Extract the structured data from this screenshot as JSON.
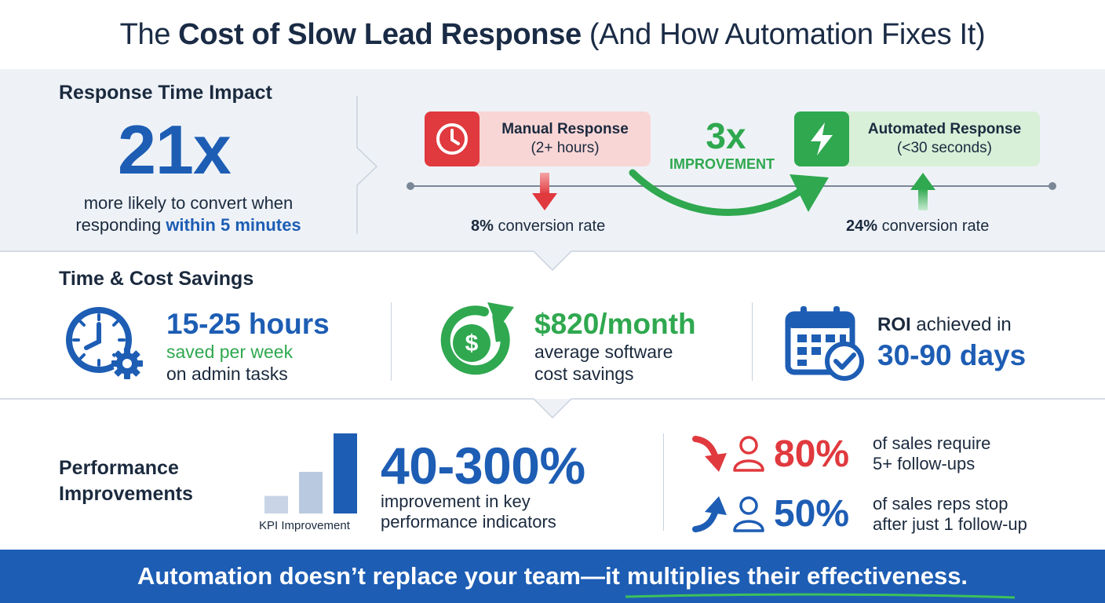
{
  "title": {
    "prefix": "The",
    "bold": "Cost of Slow Lead Response",
    "suffix": "(And How Automation Fixes It)"
  },
  "response_time": {
    "heading": "Response Time Impact",
    "big_stat": "21x",
    "desc_line1": "more likely to convert when",
    "desc_line2_prefix": "responding",
    "desc_line2_highlight": "within 5 minutes",
    "manual": {
      "title": "Manual Response",
      "subtitle": "(2+ hours)",
      "icon": "clock-icon",
      "rate_value": "8%",
      "rate_label": "conversion rate"
    },
    "improvement": {
      "value": "3x",
      "label": "IMPROVEMENT"
    },
    "automated": {
      "title": "Automated Response",
      "subtitle": "(<30 seconds)",
      "icon": "lightning-icon",
      "rate_value": "24%",
      "rate_label": "conversion rate"
    }
  },
  "savings": {
    "heading": "Time & Cost Savings",
    "hours": {
      "icon": "clock-gear-icon",
      "value": "15-25 hours",
      "line1": "saved per week",
      "line2": "on admin tasks"
    },
    "cost": {
      "icon": "dollar-growth-icon",
      "value": "$820/month",
      "line1": "average software",
      "line2": "cost savings"
    },
    "roi": {
      "icon": "calendar-check-icon",
      "label_bold": "ROI",
      "label_rest": "achieved in",
      "value": "30-90 days"
    }
  },
  "performance": {
    "heading_line1": "Performance",
    "heading_line2": "Improvements",
    "kpi_label": "KPI Improvement",
    "kpi_bars": [
      0.22,
      0.52,
      1.0
    ],
    "big_stat": "40-300%",
    "desc_line1": "improvement in key",
    "desc_line2": "performance indicators",
    "stat_80": {
      "value": "80%",
      "line1": "of sales require",
      "line2": "5+ follow-ups"
    },
    "stat_50": {
      "value": "50%",
      "line1": "of sales reps stop",
      "line2": "after just 1 follow-up"
    }
  },
  "footer": {
    "text": "Automation doesn’t replace your team—it",
    "emphasis": "multiplies their effectiveness."
  },
  "colors": {
    "blue": "#1d5db4",
    "green": "#2fa84f",
    "red": "#e0393e",
    "navy": "#1b2a3e",
    "light_bg": "#eef2f7"
  }
}
